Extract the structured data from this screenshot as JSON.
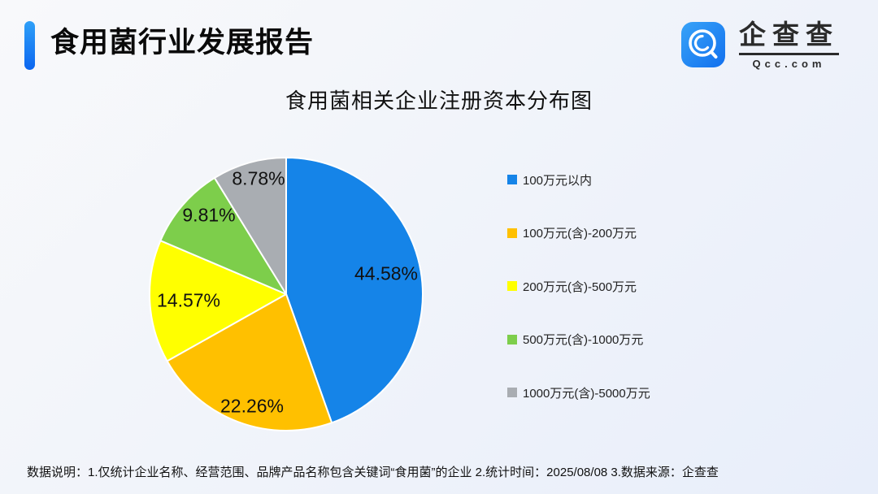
{
  "header": {
    "title": "食用菌行业发展报告",
    "accent_color": "#1584E8"
  },
  "logo": {
    "name": "企查查",
    "domain": "Qcc.com",
    "icon": "qcc-magnifier-icon",
    "icon_color": "#1E87F0"
  },
  "chart_data": {
    "type": "pie",
    "title": "食用菌相关企业注册资本分布图",
    "labels": [
      "100万元以内",
      "100万元(含)-200万元",
      "200万元(含)-500万元",
      "500万元(含)-1000万元",
      "1000万元(含)-5000万元"
    ],
    "values": [
      44.58,
      22.26,
      14.57,
      9.81,
      8.78
    ],
    "display_values": [
      "44.58%",
      "22.26%",
      "14.57%",
      "9.81%",
      "8.78%"
    ],
    "colors": [
      "#1584E8",
      "#FFC000",
      "#FFFF00",
      "#7DCE4B",
      "#A9ADB2"
    ],
    "start_angle_deg": 0,
    "direction": "clockwise",
    "legend_position": "right",
    "label_position": "inside"
  },
  "footer": {
    "text": "数据说明：1.仅统计企业名称、经营范围、品牌产品名称包含关键词“食用菌”的企业  2.统计时间：2025/08/08   3.数据来源：企查查"
  }
}
